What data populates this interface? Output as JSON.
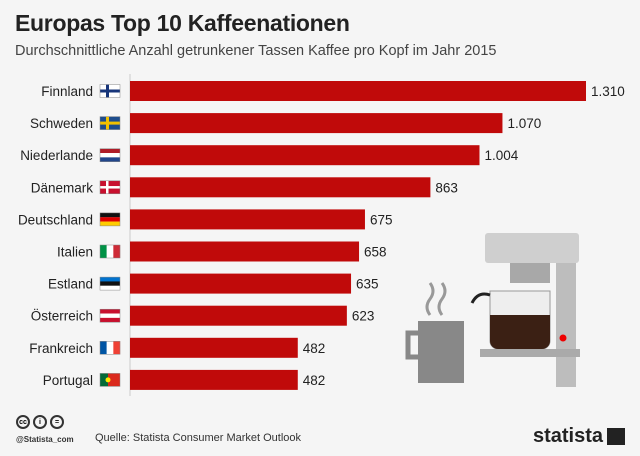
{
  "chart_data": {
    "type": "bar",
    "orientation": "horizontal",
    "title": "Europas Top 10 Kaffeenationen",
    "subtitle": "Durchschnittliche Anzahl getrunkener Tassen Kaffee pro Kopf im Jahr 2015",
    "categories": [
      "Finnland",
      "Schweden",
      "Niederlande",
      "Dänemark",
      "Deutschland",
      "Italien",
      "Estland",
      "Österreich",
      "Frankreich",
      "Portugal"
    ],
    "values": [
      1310,
      1070,
      1004,
      863,
      675,
      658,
      635,
      623,
      482,
      482
    ],
    "labels": [
      "1.310",
      "1.070",
      "1.004",
      "863",
      "675",
      "658",
      "635",
      "623",
      "482",
      "482"
    ],
    "flags": [
      "fi",
      "se",
      "nl",
      "dk",
      "de",
      "it",
      "ee",
      "at",
      "fr",
      "pt"
    ],
    "bar_color": "#c00a0a",
    "grid": false
  },
  "footer": {
    "source": "Quelle: Statista Consumer Market Outlook",
    "handle": "@Statista_com",
    "brand": "statista",
    "cc": [
      "cc",
      "i",
      "="
    ]
  }
}
